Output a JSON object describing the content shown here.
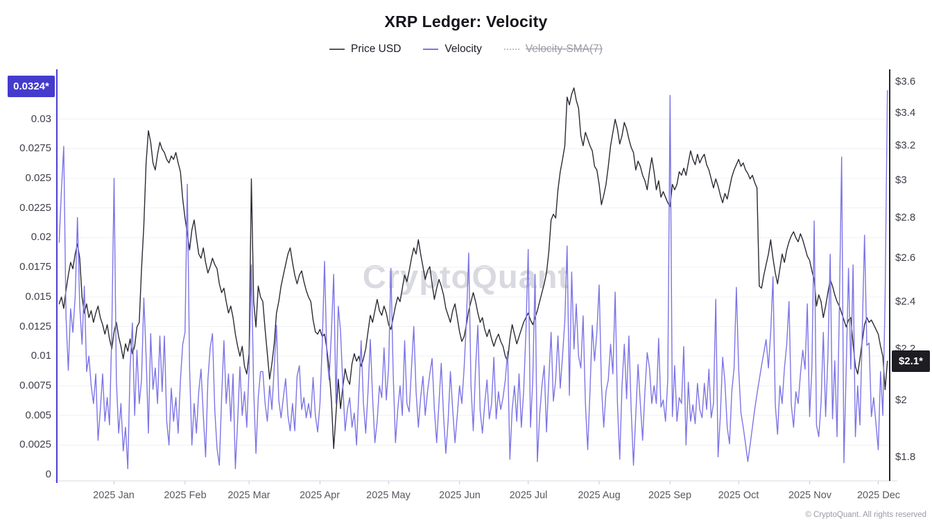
{
  "header": {
    "title": "XRP Ledger: Velocity"
  },
  "legend": [
    {
      "label": "Price USD",
      "color": "#57545e",
      "style": "solid",
      "active": true
    },
    {
      "label": "Velocity",
      "color": "#7c74e6",
      "style": "solid",
      "active": true
    },
    {
      "label": "Velocity-SMA(7)",
      "color": "#c0c0c8",
      "style": "dotted",
      "active": false
    }
  ],
  "badges": {
    "left": "0.0324*",
    "right": "$2.1*"
  },
  "watermark": "CryptoQuant",
  "footer": "© CryptoQuant. All rights reserved",
  "colors": {
    "price_line": "#2b2a33",
    "velocity_line": "#7c74e6",
    "left_axis": "#4a40cf",
    "right_axis": "#26262c",
    "bottom_axis": "#d9d9de",
    "gridline": "#f1f1f5",
    "velocity_badge_bg": "#443bcd",
    "price_badge_bg": "#1d1d23"
  },
  "chart_data": {
    "type": "line",
    "title": "XRP Ledger: Velocity",
    "x_axis": {
      "unit": "day",
      "start_date": "2024-12-08",
      "ticks": [
        {
          "day": 24,
          "label": "2025 Jan"
        },
        {
          "day": 55,
          "label": "2025 Feb"
        },
        {
          "day": 83,
          "label": "2025 Mar"
        },
        {
          "day": 114,
          "label": "2025 Apr"
        },
        {
          "day": 144,
          "label": "2025 May"
        },
        {
          "day": 175,
          "label": "2025 Jun"
        },
        {
          "day": 205,
          "label": "2025 Jul"
        },
        {
          "day": 236,
          "label": "2025 Aug"
        },
        {
          "day": 267,
          "label": "2025 Sep"
        },
        {
          "day": 297,
          "label": "2025 Oct"
        },
        {
          "day": 328,
          "label": "2025 Nov"
        },
        {
          "day": 358,
          "label": "2025 Dec"
        }
      ]
    },
    "left_axis": {
      "name": "Velocity",
      "scale": "linear",
      "ticks": [
        0,
        0.0025,
        0.005,
        0.0075,
        0.01,
        0.0125,
        0.015,
        0.0175,
        0.02,
        0.0225,
        0.025,
        0.0275,
        0.03
      ],
      "latest": 0.0324
    },
    "right_axis": {
      "name": "Price USD",
      "scale": "log",
      "ticks": [
        1.8,
        2,
        2.2,
        2.4,
        2.6,
        2.8,
        3,
        3.2,
        3.4,
        3.6
      ],
      "latest": 2.1
    },
    "series": [
      {
        "name": "Price USD",
        "axis": "right",
        "color": "#2b2a33",
        "hidden": false,
        "values": [
          2.39,
          2.42,
          2.37,
          2.45,
          2.52,
          2.58,
          2.55,
          2.62,
          2.67,
          2.6,
          2.42,
          2.35,
          2.39,
          2.33,
          2.36,
          2.31,
          2.35,
          2.38,
          2.33,
          2.3,
          2.26,
          2.3,
          2.24,
          2.2,
          2.27,
          2.31,
          2.25,
          2.21,
          2.16,
          2.22,
          2.19,
          2.24,
          2.18,
          2.21,
          2.29,
          2.31,
          2.55,
          2.76,
          3.1,
          3.29,
          3.22,
          3.1,
          3.06,
          3.15,
          3.22,
          3.18,
          3.16,
          3.12,
          3.1,
          3.14,
          3.12,
          3.16,
          3.1,
          3.05,
          2.9,
          2.8,
          2.72,
          2.64,
          2.74,
          2.79,
          2.7,
          2.62,
          2.6,
          2.65,
          2.58,
          2.53,
          2.56,
          2.6,
          2.57,
          2.55,
          2.48,
          2.44,
          2.46,
          2.4,
          2.35,
          2.38,
          2.33,
          2.26,
          2.21,
          2.17,
          2.21,
          2.13,
          2.1,
          2.18,
          3.01,
          2.4,
          2.29,
          2.47,
          2.42,
          2.4,
          2.28,
          2.18,
          2.08,
          2.14,
          2.22,
          2.35,
          2.4,
          2.47,
          2.52,
          2.57,
          2.62,
          2.65,
          2.58,
          2.52,
          2.48,
          2.52,
          2.54,
          2.49,
          2.45,
          2.42,
          2.4,
          2.32,
          2.27,
          2.26,
          2.28,
          2.25,
          2.26,
          2.2,
          2.12,
          2.0,
          1.83,
          1.95,
          2.08,
          1.97,
          2.05,
          2.12,
          2.08,
          2.06,
          2.14,
          2.18,
          2.15,
          2.17,
          2.13,
          2.16,
          2.2,
          2.27,
          2.34,
          2.31,
          2.36,
          2.41,
          2.36,
          2.34,
          2.38,
          2.35,
          2.3,
          2.28,
          2.33,
          2.38,
          2.42,
          2.4,
          2.46,
          2.52,
          2.49,
          2.54,
          2.6,
          2.65,
          2.62,
          2.69,
          2.62,
          2.56,
          2.5,
          2.54,
          2.56,
          2.48,
          2.41,
          2.46,
          2.5,
          2.47,
          2.43,
          2.37,
          2.34,
          2.31,
          2.36,
          2.39,
          2.33,
          2.27,
          2.23,
          2.25,
          2.3,
          2.36,
          2.4,
          2.44,
          2.4,
          2.35,
          2.31,
          2.33,
          2.28,
          2.25,
          2.28,
          2.24,
          2.21,
          2.24,
          2.26,
          2.23,
          2.21,
          2.17,
          2.15,
          2.24,
          2.3,
          2.26,
          2.22,
          2.25,
          2.28,
          2.31,
          2.33,
          2.35,
          2.32,
          2.3,
          2.33,
          2.36,
          2.4,
          2.44,
          2.48,
          2.53,
          2.63,
          2.79,
          2.82,
          2.8,
          2.95,
          3.05,
          3.12,
          3.2,
          3.5,
          3.45,
          3.52,
          3.56,
          3.48,
          3.43,
          3.26,
          3.2,
          3.28,
          3.24,
          3.2,
          3.17,
          3.08,
          3.06,
          2.98,
          2.87,
          2.92,
          2.98,
          3.08,
          3.2,
          3.28,
          3.36,
          3.3,
          3.21,
          3.26,
          3.34,
          3.3,
          3.24,
          3.19,
          3.16,
          3.06,
          3.11,
          3.08,
          3.03,
          3.0,
          2.95,
          3.05,
          3.13,
          3.05,
          2.95,
          3.0,
          2.91,
          2.94,
          2.91,
          2.88,
          2.86,
          2.98,
          2.95,
          2.98,
          3.05,
          3.03,
          3.07,
          3.03,
          3.1,
          3.17,
          3.12,
          3.09,
          3.15,
          3.1,
          3.13,
          3.15,
          3.09,
          3.06,
          3.01,
          2.96,
          3.01,
          2.97,
          2.92,
          2.88,
          2.93,
          2.9,
          2.96,
          3.02,
          3.06,
          3.09,
          3.12,
          3.08,
          3.1,
          3.06,
          3.04,
          3.01,
          3.03,
          2.99,
          2.96,
          2.47,
          2.46,
          2.52,
          2.57,
          2.62,
          2.69,
          2.6,
          2.53,
          2.48,
          2.55,
          2.62,
          2.58,
          2.64,
          2.68,
          2.71,
          2.73,
          2.7,
          2.68,
          2.72,
          2.69,
          2.65,
          2.61,
          2.59,
          2.54,
          2.5,
          2.38,
          2.43,
          2.4,
          2.33,
          2.38,
          2.44,
          2.5,
          2.47,
          2.43,
          2.4,
          2.38,
          2.35,
          2.32,
          2.29,
          2.32,
          2.33,
          2.22,
          2.13,
          2.1,
          2.16,
          2.23,
          2.3,
          2.33,
          2.31,
          2.32,
          2.3,
          2.28,
          2.26,
          2.21,
          2.17,
          2.04,
          2.15
        ]
      },
      {
        "name": "Velocity",
        "axis": "left",
        "color": "#7c74e6",
        "hidden": false,
        "values": [
          0.0196,
          0.024,
          0.0277,
          0.0133,
          0.0088,
          0.014,
          0.012,
          0.015,
          0.0217,
          0.0142,
          0.011,
          0.0159,
          0.0087,
          0.01,
          0.0075,
          0.006,
          0.0085,
          0.0029,
          0.0055,
          0.0085,
          0.0045,
          0.0065,
          0.0042,
          0.012,
          0.025,
          0.008,
          0.0035,
          0.006,
          0.002,
          0.004,
          0.0005,
          0.009,
          0.0128,
          0.005,
          0.0105,
          0.006,
          0.008,
          0.0149,
          0.01,
          0.0035,
          0.0119,
          0.0072,
          0.009,
          0.006,
          0.0117,
          0.007,
          0.0117,
          0.0045,
          0.0025,
          0.0073,
          0.0045,
          0.0065,
          0.0035,
          0.008,
          0.011,
          0.012,
          0.0245,
          0.009,
          0.0025,
          0.006,
          0.0035,
          0.007,
          0.0089,
          0.005,
          0.0015,
          0.008,
          0.0107,
          0.0119,
          0.0055,
          0.0022,
          0.0008,
          0.0065,
          0.0113,
          0.006,
          0.0085,
          0.0045,
          0.0085,
          0.0005,
          0.0045,
          0.0091,
          0.005,
          0.007,
          0.004,
          0.009,
          0.0177,
          0.0072,
          0.0018,
          0.0065,
          0.0087,
          0.0087,
          0.006,
          0.0045,
          0.0075,
          0.0055,
          0.009,
          0.0126,
          0.0063,
          0.0048,
          0.0065,
          0.0081,
          0.005,
          0.0037,
          0.006,
          0.0037,
          0.0083,
          0.0092,
          0.0055,
          0.0065,
          0.0048,
          0.006,
          0.0048,
          0.0082,
          0.005,
          0.0036,
          0.006,
          0.011,
          0.018,
          0.0101,
          0.008,
          0.012,
          0.0169,
          0.006,
          0.0142,
          0.0121,
          0.0075,
          0.0037,
          0.0055,
          0.0065,
          0.004,
          0.0052,
          0.0025,
          0.007,
          0.0113,
          0.006,
          0.0035,
          0.007,
          0.0114,
          0.0065,
          0.0027,
          0.0045,
          0.0075,
          0.0065,
          0.0107,
          0.0063,
          0.009,
          0.0174,
          0.0085,
          0.0027,
          0.0055,
          0.0075,
          0.005,
          0.0113,
          0.006,
          0.0053,
          0.009,
          0.0125,
          0.007,
          0.004,
          0.0065,
          0.0083,
          0.005,
          0.007,
          0.0085,
          0.0098,
          0.0055,
          0.0027,
          0.006,
          0.0094,
          0.005,
          0.0018,
          0.0045,
          0.0087,
          0.0055,
          0.0027,
          0.005,
          0.0075,
          0.006,
          0.009,
          0.013,
          0.0187,
          0.0075,
          0.0037,
          0.009,
          0.0126,
          0.0054,
          0.0035,
          0.006,
          0.008,
          0.0047,
          0.006,
          0.0099,
          0.0047,
          0.007,
          0.0055,
          0.0065,
          0.008,
          0.0104,
          0.0013,
          0.0055,
          0.0075,
          0.0045,
          0.0085,
          0.004,
          0.007,
          0.012,
          0.019,
          0.004,
          0.008,
          0.0169,
          0.0011,
          0.005,
          0.0075,
          0.0092,
          0.0036,
          0.008,
          0.012,
          0.0062,
          0.008,
          0.0117,
          0.0073,
          0.01,
          0.013,
          0.0193,
          0.0067,
          0.0171,
          0.0106,
          0.0144,
          0.01,
          0.009,
          0.0134,
          0.006,
          0.0021,
          0.007,
          0.0126,
          0.0096,
          0.012,
          0.016,
          0.0076,
          0.004,
          0.007,
          0.008,
          0.011,
          0.0085,
          0.0154,
          0.006,
          0.0013,
          0.0075,
          0.011,
          0.0064,
          0.0117,
          0.0055,
          0.0008,
          0.005,
          0.0093,
          0.006,
          0.0029,
          0.007,
          0.0103,
          0.009,
          0.006,
          0.0075,
          0.006,
          0.0115,
          0.0057,
          0.0063,
          0.0045,
          0.008,
          0.032,
          0.0049,
          0.0092,
          0.0045,
          0.0065,
          0.006,
          0.0108,
          0.0025,
          0.0078,
          0.0045,
          0.0059,
          0.0043,
          0.0077,
          0.0055,
          0.0048,
          0.0077,
          0.0055,
          0.0089,
          0.0048,
          0.006,
          0.0148,
          0.0015,
          0.005,
          0.0099,
          0.0078,
          0.004,
          0.0026,
          0.007,
          0.009,
          0.0158,
          0.0089,
          0.0052,
          0.004,
          0.0026,
          0.0011,
          0.0025,
          0.004,
          0.0055,
          0.0068,
          0.008,
          0.0092,
          0.0103,
          0.0114,
          0.009,
          0.012,
          0.0167,
          0.0059,
          0.0034,
          0.0075,
          0.006,
          0.009,
          0.011,
          0.0146,
          0.0059,
          0.004,
          0.007,
          0.006,
          0.0085,
          0.0105,
          0.0089,
          0.0144,
          0.0049,
          0.009,
          0.0214,
          0.0042,
          0.0032,
          0.006,
          0.012,
          0.0049,
          0.01,
          0.0186,
          0.0047,
          0.0096,
          0.0032,
          0.014,
          0.0268,
          0.001,
          0.009,
          0.0174,
          0.0089,
          0.0177,
          0.0032,
          0.0075,
          0.0042,
          0.012,
          0.0202,
          0.0109,
          0.0111,
          0.0049,
          0.0065,
          0.0043,
          0.0021,
          0.0087,
          0.005,
          0.015,
          0.0324
        ]
      },
      {
        "name": "Velocity-SMA(7)",
        "axis": "left",
        "color": "#c0c0c8",
        "hidden": true,
        "values": []
      }
    ]
  }
}
